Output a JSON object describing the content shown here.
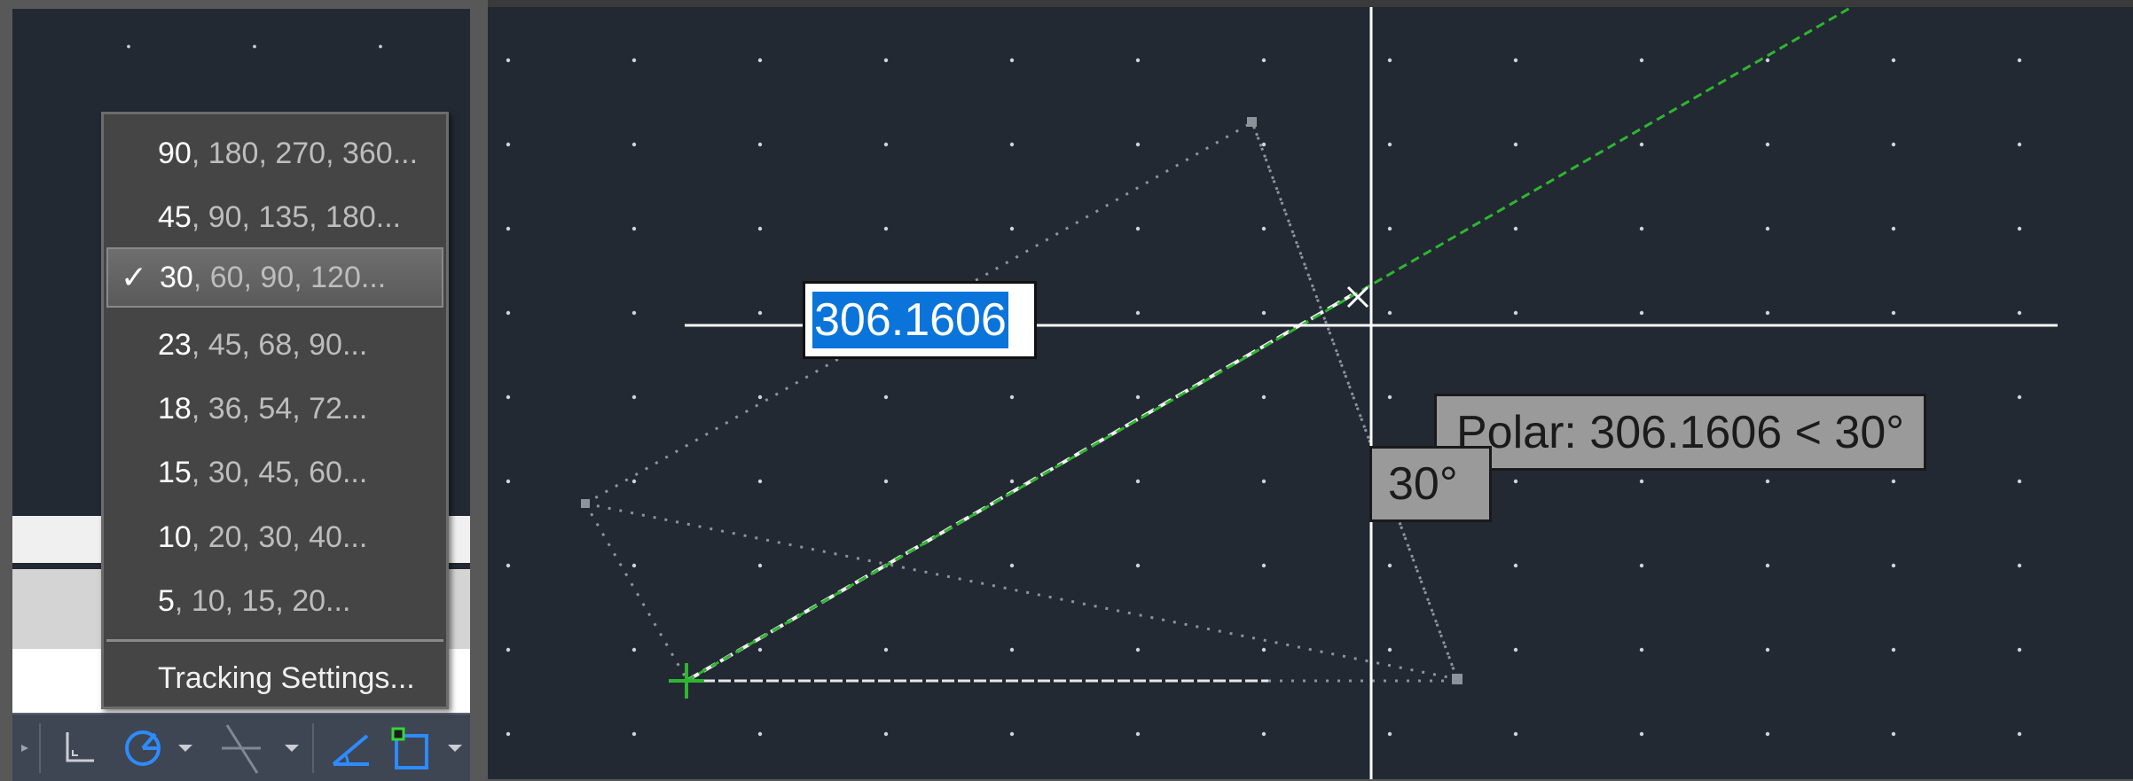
{
  "polar_menu": {
    "items": [
      {
        "lead": "90",
        "rest": ", 180, 270, 360...",
        "checked": false
      },
      {
        "lead": "45",
        "rest": ", 90, 135, 180...",
        "checked": false
      },
      {
        "lead": "30",
        "rest": ", 60, 90, 120...",
        "checked": true
      },
      {
        "lead": "23",
        "rest": ", 45, 68, 90...",
        "checked": false
      },
      {
        "lead": "18",
        "rest": ", 36, 54, 72...",
        "checked": false
      },
      {
        "lead": "15",
        "rest": ", 30, 45, 60...",
        "checked": false
      },
      {
        "lead": "10",
        "rest": ", 20, 30, 40...",
        "checked": false
      },
      {
        "lead": "5",
        "rest": ", 10, 15, 20...",
        "checked": false
      }
    ],
    "check_mark": "✓",
    "tracking_settings": "Tracking Settings..."
  },
  "drawing": {
    "dynamic_input_value": "306.1606",
    "polar_tooltip": "Polar: 306.1606 < 30°",
    "angle_tooltip": "30°"
  },
  "status_bar": {
    "icons": [
      "ortho-icon",
      "polar-tracking-icon",
      "isodraft-icon",
      "object-snap-tracking-icon",
      "object-snap-icon"
    ]
  },
  "colors": {
    "canvas_bg": "#222933",
    "tracking_green": "#2fb52f",
    "selection_blue": "#0a74da",
    "active_icon_blue": "#2e8bff"
  }
}
